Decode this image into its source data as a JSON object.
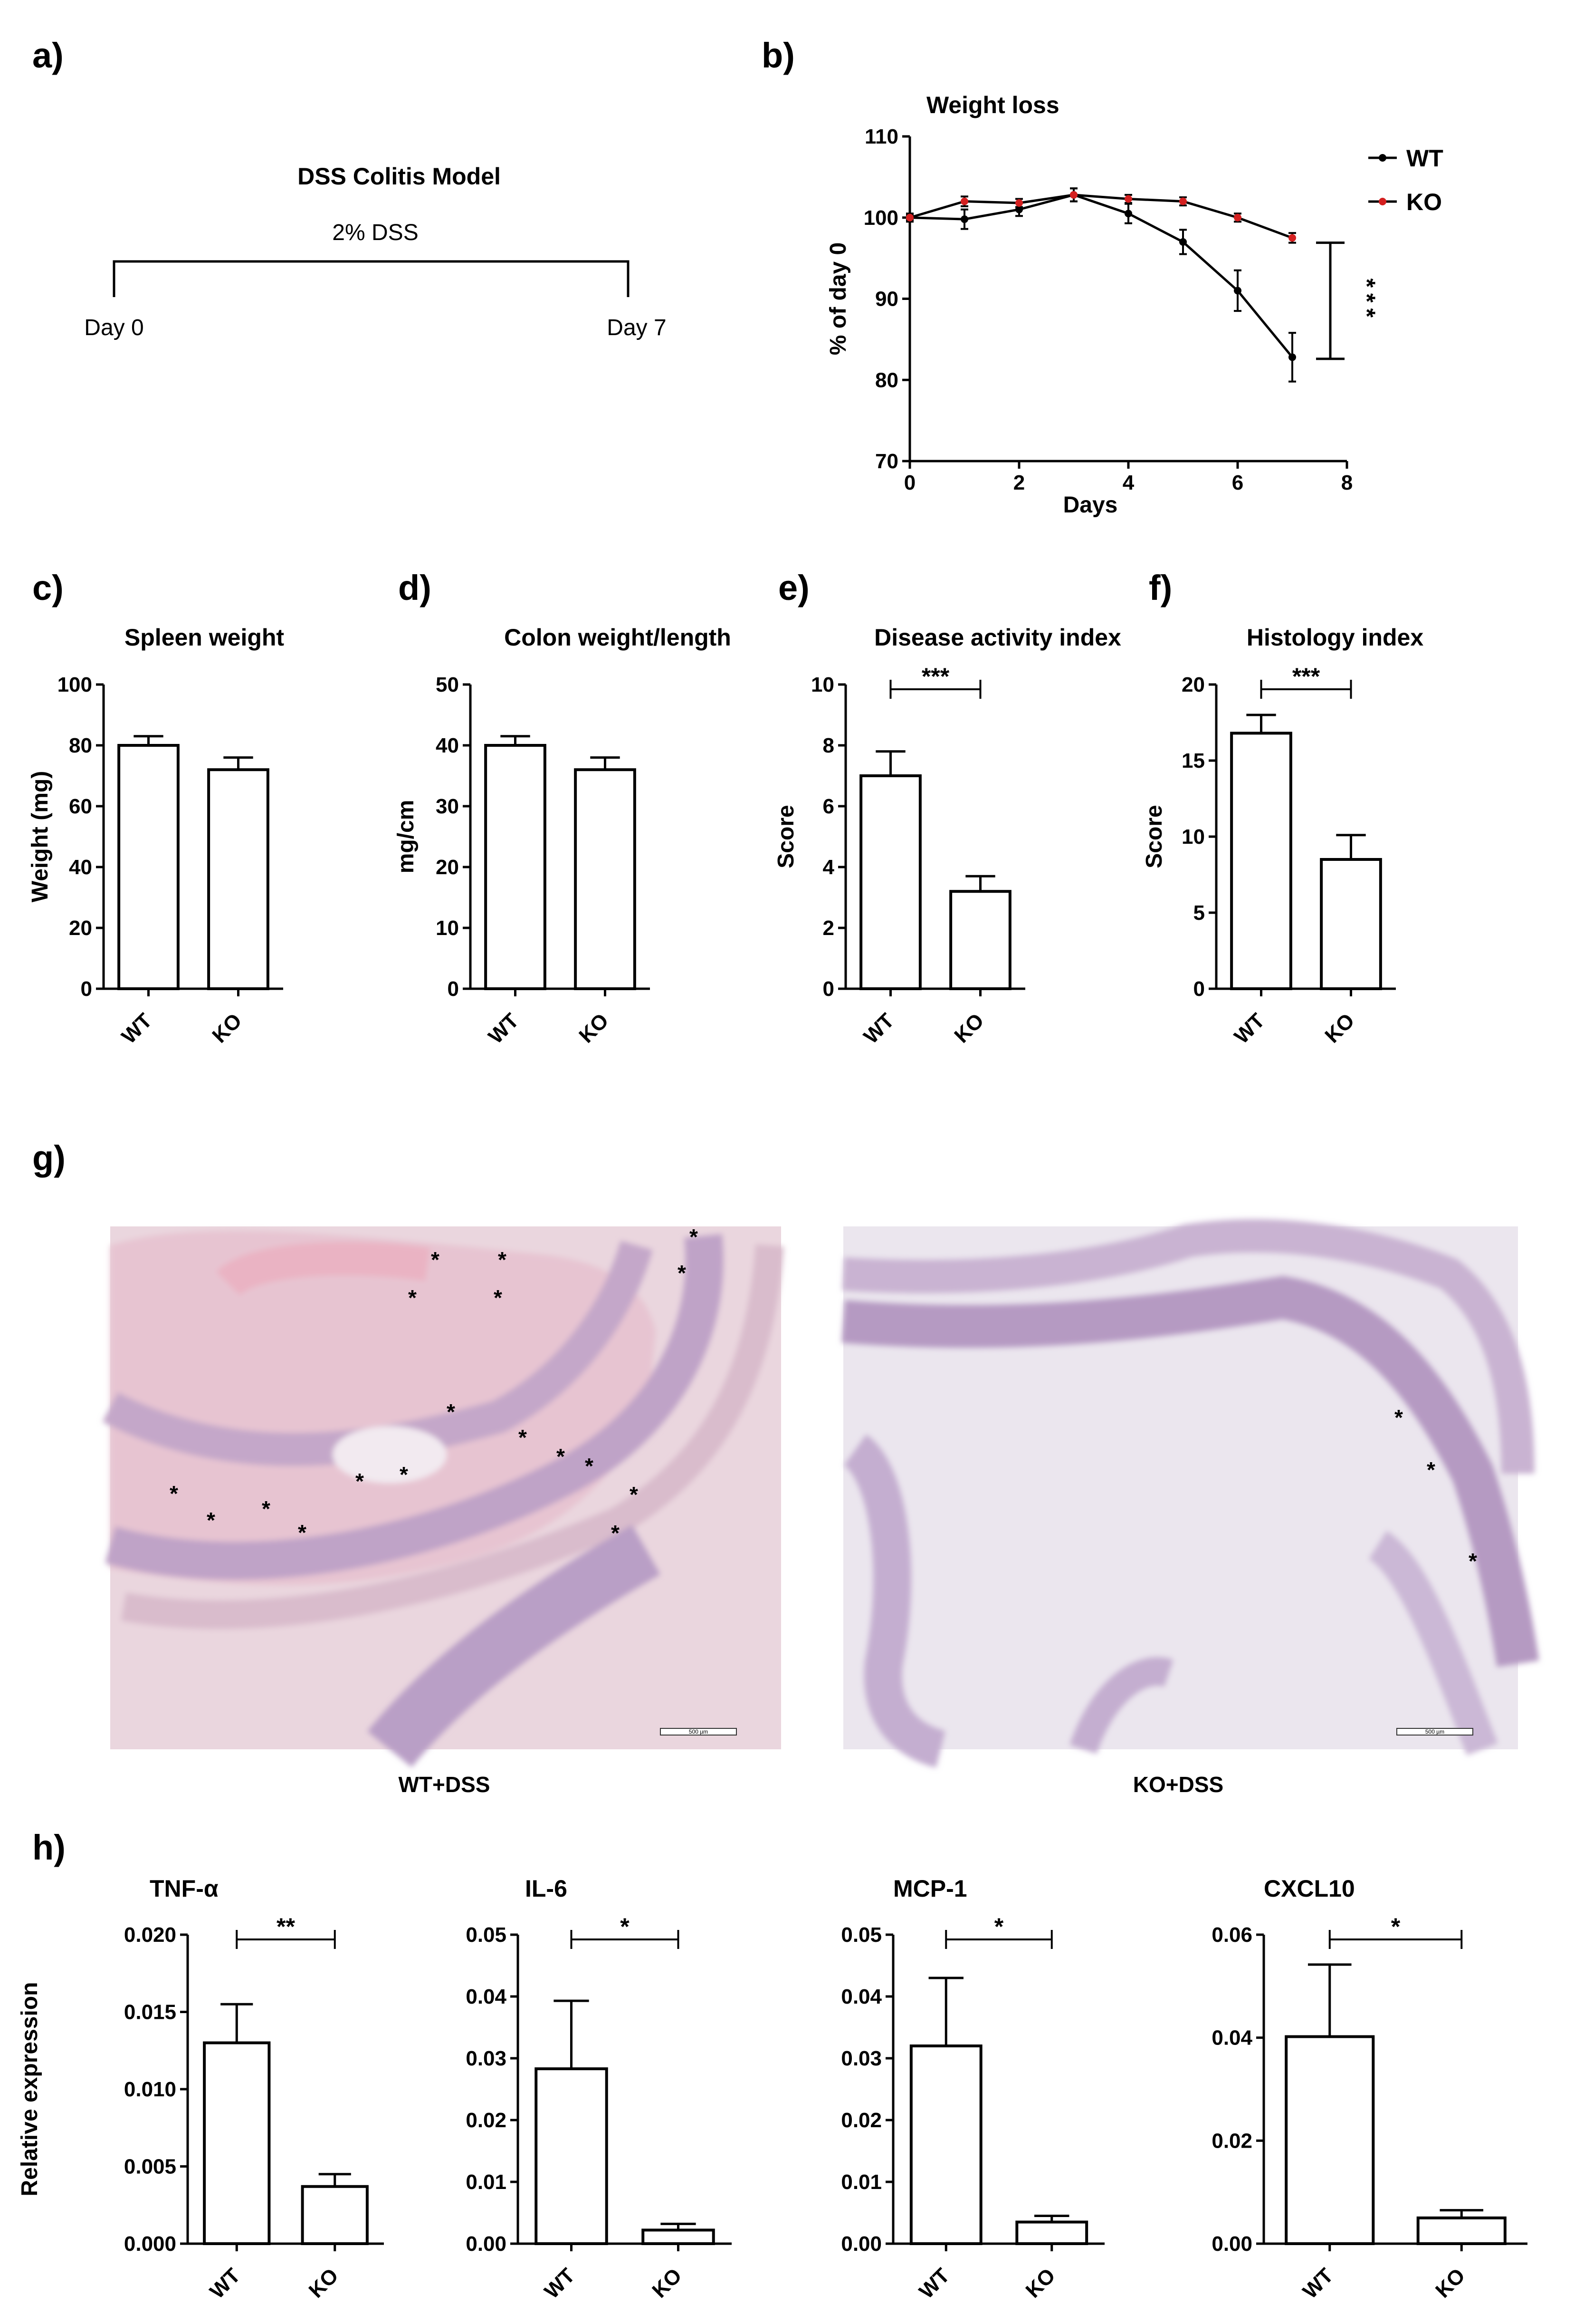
{
  "figure": {
    "panel_letters": [
      "a)",
      "b)",
      "c)",
      "d)",
      "e)",
      "f)",
      "g)",
      "h)"
    ]
  },
  "panel_a": {
    "title": "DSS Colitis Model",
    "treatment": "2% DSS",
    "start_label": "Day 0",
    "end_label": "Day 7"
  },
  "panel_g": {
    "left_caption": "WT+DSS",
    "right_caption": "KO+DSS",
    "scale_bar_label": "500 µm",
    "left_marker_count": 18,
    "right_marker_count": 3,
    "marker_symbol": "*",
    "colors": {
      "tissue_background": "#e8c9d3",
      "section_pink": "#e6bfcd",
      "crypt_purple": "#b59ac2",
      "slide_background": "#ece6ee"
    }
  },
  "chart_data": [
    {
      "id": "b",
      "type": "line",
      "title": "Weight loss",
      "xlabel": "Days",
      "ylabel": "% of day 0",
      "xlim": [
        0,
        8
      ],
      "ylim": [
        70,
        110
      ],
      "xticks": [
        0,
        2,
        4,
        6,
        8
      ],
      "yticks": [
        70,
        80,
        90,
        100,
        110
      ],
      "legend": "top-right",
      "series": [
        {
          "name": "WT",
          "color": "#000000",
          "x": [
            0,
            1,
            2,
            3,
            4,
            5,
            6,
            7
          ],
          "values": [
            100,
            99.8,
            101,
            102.8,
            100.5,
            97,
            91,
            82.8
          ],
          "err": [
            0.5,
            1.2,
            0.8,
            0.8,
            1.2,
            1.5,
            2.5,
            3
          ]
        },
        {
          "name": "KO",
          "color": "#d42020",
          "x": [
            0,
            1,
            2,
            3,
            4,
            5,
            6,
            7
          ],
          "values": [
            100,
            102,
            101.8,
            102.8,
            102.3,
            102,
            100,
            97.5
          ],
          "err": [
            0.3,
            0.6,
            0.5,
            0.8,
            0.5,
            0.5,
            0.5,
            0.6
          ]
        }
      ],
      "significance": "***"
    },
    {
      "id": "c",
      "type": "bar",
      "title": "Spleen weight",
      "ylabel": "Weight (mg)",
      "categories": [
        "WT",
        "KO"
      ],
      "values": [
        80,
        72
      ],
      "err": [
        3,
        4
      ],
      "ylim": [
        0,
        100
      ],
      "yticks": [
        0,
        20,
        40,
        60,
        80,
        100
      ],
      "significance": ""
    },
    {
      "id": "d",
      "type": "bar",
      "title": "Colon weight/length",
      "ylabel": "mg/cm",
      "categories": [
        "WT",
        "KO"
      ],
      "values": [
        40,
        36
      ],
      "err": [
        1.5,
        2
      ],
      "ylim": [
        0,
        50
      ],
      "yticks": [
        0,
        10,
        20,
        30,
        40,
        50
      ],
      "significance": ""
    },
    {
      "id": "e",
      "type": "bar",
      "title": "Disease activity index",
      "ylabel": "Score",
      "categories": [
        "WT",
        "KO"
      ],
      "values": [
        7,
        3.2
      ],
      "err": [
        0.8,
        0.5
      ],
      "ylim": [
        0,
        10
      ],
      "yticks": [
        0,
        2,
        4,
        6,
        8,
        10
      ],
      "significance": "***"
    },
    {
      "id": "f",
      "type": "bar",
      "title": "Histology index",
      "ylabel": "Score",
      "categories": [
        "WT",
        "KO"
      ],
      "values": [
        16.8,
        8.5
      ],
      "err": [
        1.2,
        1.6
      ],
      "ylim": [
        0,
        20
      ],
      "yticks": [
        0,
        5,
        10,
        15,
        20
      ],
      "significance": "***"
    },
    {
      "id": "h1",
      "type": "bar",
      "title": "TNF-α",
      "ylabel": "Relative expression",
      "categories": [
        "WT",
        "KO"
      ],
      "values": [
        0.013,
        0.0037
      ],
      "err": [
        0.0025,
        0.0008
      ],
      "ylim": [
        0,
        0.02
      ],
      "yticks": [
        "0.000",
        "0.005",
        "0.010",
        "0.015",
        "0.020"
      ],
      "significance": "**"
    },
    {
      "id": "h2",
      "type": "bar",
      "title": "IL-6",
      "ylabel": "",
      "categories": [
        "WT",
        "KO"
      ],
      "values": [
        0.0283,
        0.0022
      ],
      "err": [
        0.011,
        0.001
      ],
      "ylim": [
        0,
        0.05
      ],
      "yticks": [
        "0.00",
        "0.01",
        "0.02",
        "0.03",
        "0.04",
        "0.05"
      ],
      "significance": "*"
    },
    {
      "id": "h3",
      "type": "bar",
      "title": "MCP-1",
      "ylabel": "",
      "categories": [
        "WT",
        "KO"
      ],
      "values": [
        0.032,
        0.0035
      ],
      "err": [
        0.011,
        0.001
      ],
      "ylim": [
        0,
        0.05
      ],
      "yticks": [
        "0.00",
        "0.01",
        "0.02",
        "0.03",
        "0.04",
        "0.05"
      ],
      "significance": "*"
    },
    {
      "id": "h4",
      "type": "bar",
      "title": "CXCL10",
      "ylabel": "",
      "categories": [
        "WT",
        "KO"
      ],
      "values": [
        0.0402,
        0.005
      ],
      "err": [
        0.014,
        0.0015
      ],
      "ylim": [
        0,
        0.06
      ],
      "yticks": [
        "0.00",
        "0.02",
        "0.04",
        "0.06"
      ],
      "significance": "*"
    }
  ]
}
